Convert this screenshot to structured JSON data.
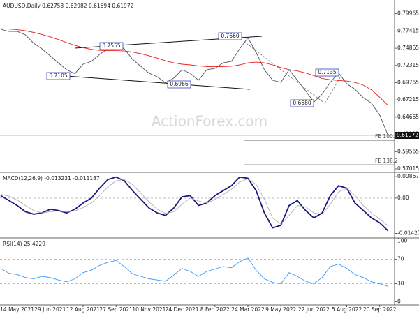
{
  "chart_data": [
    {
      "type": "line",
      "title": "AUDUSD,Daily  0.62758 0.62982 0.61694 0.61972",
      "watermark": "ActionForex.com",
      "series": [
        {
          "color": "#4a5560",
          "values": [
            0.7766,
            0.7735,
            0.7735,
            0.7684,
            0.756,
            0.7477,
            0.7374,
            0.727,
            0.7168,
            0.711,
            0.725,
            0.7291,
            0.7395,
            0.7477,
            0.7545,
            0.7477,
            0.7322,
            0.7219,
            0.7116,
            0.7064,
            0.6975,
            0.7044,
            0.7168,
            0.7116,
            0.7013,
            0.7168,
            0.7188,
            0.727,
            0.7291,
            0.7477,
            0.764,
            0.7426,
            0.7168,
            0.7013,
            0.6982,
            0.7168,
            0.7013,
            0.6858,
            0.669,
            0.6806,
            0.6982,
            0.712,
            0.6961,
            0.6879,
            0.6755,
            0.6672,
            0.6497,
            0.6197
          ]
        },
        {
          "color": "#e8201c",
          "values": [
            0.7775,
            0.777,
            0.776,
            0.7745,
            0.772,
            0.769,
            0.7655,
            0.7615,
            0.757,
            0.753,
            0.7495,
            0.747,
            0.7455,
            0.745,
            0.745,
            0.7445,
            0.743,
            0.7405,
            0.7375,
            0.734,
            0.73,
            0.727,
            0.725,
            0.724,
            0.7225,
            0.7215,
            0.7215,
            0.7215,
            0.722,
            0.724,
            0.727,
            0.728,
            0.727,
            0.724,
            0.72,
            0.717,
            0.715,
            0.712,
            0.708,
            0.704,
            0.702,
            0.701,
            0.7,
            0.698,
            0.694,
            0.687,
            0.676,
            0.664
          ]
        }
      ],
      "last_price": 0.61972,
      "annotations": [
        0.7555,
        {
          "value": 0.766,
          "label": "0.7660"
        },
        0.7105,
        0.6966,
        0.7135,
        {
          "value": 0.668,
          "label": "0.6680"
        }
      ],
      "fe_levels": [
        {
          "label": "FE 100.0",
          "value": 0.6125
        },
        {
          "label": "FE 138.2",
          "value": 0.5763
        }
      ],
      "ylim": [
        0.565,
        0.82
      ],
      "yticks": [
        0.79965,
        0.77415,
        0.74865,
        0.72315,
        0.69765,
        0.67215,
        0.64665,
        0.62115,
        0.59565,
        0.57015
      ]
    },
    {
      "type": "line",
      "title": "MACD(12,26,9) -0.013231 -0.011187",
      "grid": true,
      "series": [
        {
          "color": "#1a1a80",
          "values": [
            0.001,
            -0.001,
            -0.003,
            -0.0055,
            -0.0065,
            -0.006,
            -0.0045,
            -0.005,
            -0.006,
            -0.0045,
            -0.002,
            0.0,
            0.004,
            0.0075,
            0.0085,
            0.007,
            0.003,
            -0.0005,
            -0.004,
            -0.006,
            -0.007,
            -0.004,
            0.0005,
            0.001,
            -0.003,
            -0.002,
            0.001,
            0.003,
            0.005,
            0.0085,
            0.008,
            0.003,
            -0.006,
            -0.012,
            -0.011,
            -0.003,
            -0.001,
            -0.005,
            -0.008,
            -0.006,
            0.001,
            0.005,
            0.004,
            -0.002,
            -0.005,
            -0.008,
            -0.01,
            -0.0132
          ]
        },
        {
          "color": "#b0b0b0",
          "values": [
            0.0015,
            0.0008,
            -0.0008,
            -0.003,
            -0.005,
            -0.006,
            -0.0055,
            -0.0052,
            -0.0055,
            -0.0052,
            -0.0038,
            -0.002,
            0.001,
            0.0045,
            0.007,
            0.0075,
            0.0055,
            0.002,
            -0.0015,
            -0.0045,
            -0.0062,
            -0.0055,
            -0.0025,
            0.0,
            -0.0012,
            -0.002,
            -0.0005,
            0.0015,
            0.0035,
            0.0065,
            0.0078,
            0.0055,
            -0.0005,
            -0.008,
            -0.0105,
            -0.007,
            -0.003,
            -0.0035,
            -0.006,
            -0.0065,
            -0.0025,
            0.0025,
            0.004,
            0.001,
            -0.003,
            -0.006,
            -0.0085,
            -0.0112
          ]
        }
      ],
      "ylim": [
        -0.0161,
        0.0104
      ],
      "yticks": [
        0.008673,
        {
          "value": 0,
          "label": "0.00"
        },
        -0.014274
      ]
    },
    {
      "type": "line",
      "title": "RSI(14) 25.4229",
      "grid": true,
      "categories": [
        null,
        null,
        "14 May 2021",
        null,
        null,
        null,
        "29 Jun 2021",
        null,
        null,
        null,
        "12 Aug 2021",
        null,
        null,
        null,
        "27 Sep 2021",
        null,
        null,
        null,
        "10 Nov 2021",
        null,
        null,
        null,
        "24 Dec 2021",
        null,
        null,
        null,
        "8 Feb 2022",
        null,
        null,
        null,
        "24 Mar 2022",
        null,
        null,
        null,
        "9 May 2022",
        null,
        null,
        null,
        "22 Jun 2022",
        null,
        null,
        null,
        "5 Aug 2022",
        null,
        null,
        null,
        "20 Sep 2022",
        null
      ],
      "series": [
        {
          "color": "#3399ff",
          "values": [
            55,
            47,
            45,
            40,
            38,
            42,
            40,
            36,
            33,
            38,
            48,
            52,
            60,
            65,
            68,
            58,
            46,
            42,
            38,
            36,
            34,
            44,
            55,
            50,
            42,
            50,
            54,
            58,
            56,
            66,
            72,
            52,
            38,
            32,
            30,
            48,
            42,
            34,
            30,
            40,
            58,
            62,
            55,
            45,
            40,
            33,
            30,
            25.4229
          ]
        }
      ],
      "ylim": [
        -5,
        105
      ],
      "yticks": [
        100,
        70,
        30,
        0
      ]
    }
  ]
}
